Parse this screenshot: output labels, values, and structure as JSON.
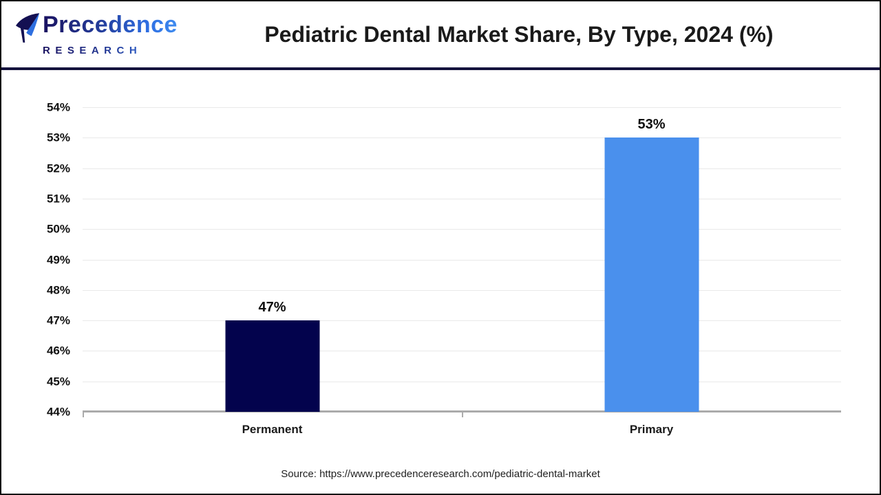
{
  "header": {
    "logo": {
      "line1": "Precedence",
      "line2": "RESEARCH"
    },
    "title": "Pediatric Dental Market Share, By Type, 2024 (%)"
  },
  "chart_data": {
    "type": "bar",
    "title": "Pediatric Dental Market Share, By Type, 2024 (%)",
    "categories": [
      "Permanent",
      "Primary"
    ],
    "values": [
      47,
      53
    ],
    "value_labels": [
      "47%",
      "53%"
    ],
    "bar_colors": [
      "#03034d",
      "#4a90ed"
    ],
    "ylim": [
      44,
      54
    ],
    "ytick_step": 1,
    "yticks": [
      "44%",
      "45%",
      "46%",
      "47%",
      "48%",
      "49%",
      "50%",
      "51%",
      "52%",
      "53%",
      "54%"
    ],
    "grid": true,
    "legend": false,
    "xlabel": "",
    "ylabel": ""
  },
  "footer": {
    "source": "Source: https://www.precedenceresearch.com/pediatric-dental-market"
  }
}
